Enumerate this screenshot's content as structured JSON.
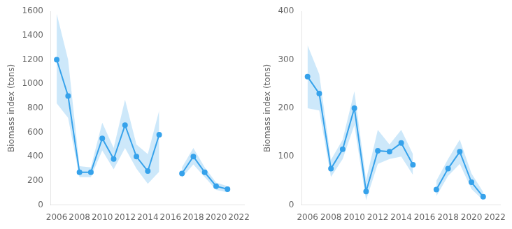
{
  "chart_data": [
    {
      "type": "line",
      "y_label": "Biomass index (tons)",
      "x": [
        2006,
        2007,
        2008,
        2009,
        2010,
        2011,
        2012,
        2013,
        2014,
        2015,
        2016,
        2017,
        2018,
        2019,
        2020,
        2021
      ],
      "series": [
        {
          "values": [
            1200,
            900,
            270,
            270,
            550,
            380,
            660,
            400,
            280,
            580,
            null,
            260,
            400,
            270,
            155,
            130
          ],
          "upper": [
            1580,
            1200,
            320,
            310,
            680,
            470,
            870,
            500,
            420,
            780,
            null,
            310,
            470,
            310,
            185,
            155
          ],
          "lower": [
            840,
            720,
            230,
            230,
            450,
            295,
            470,
            300,
            175,
            275,
            null,
            225,
            335,
            230,
            125,
            105
          ],
          "marker": "circle"
        }
      ],
      "xlim": [
        2005.5,
        2022.5
      ],
      "xticks": [
        2006,
        2008,
        2010,
        2012,
        2014,
        2016,
        2018,
        2020,
        2022
      ],
      "ylim": [
        0,
        1600
      ],
      "yticks": [
        0,
        200,
        400,
        600,
        800,
        1000,
        1200,
        1400,
        1600
      ],
      "grid": false
    },
    {
      "type": "line",
      "y_label": "Biomass index (tons)",
      "x": [
        2006,
        2007,
        2008,
        2009,
        2010,
        2011,
        2012,
        2013,
        2014,
        2015,
        2016,
        2017,
        2018,
        2019,
        2020,
        2021
      ],
      "series": [
        {
          "values": [
            265,
            230,
            75,
            115,
            200,
            28,
            112,
            110,
            128,
            83,
            null,
            32,
            75,
            110,
            47,
            17
          ],
          "upper": [
            330,
            270,
            93,
            135,
            235,
            52,
            155,
            125,
            155,
            105,
            null,
            50,
            95,
            135,
            65,
            27
          ],
          "lower": [
            200,
            195,
            58,
            95,
            165,
            10,
            85,
            95,
            100,
            62,
            null,
            18,
            60,
            85,
            33,
            10
          ],
          "marker": "circle"
        }
      ],
      "xlim": [
        2005.5,
        2022.5
      ],
      "xticks": [
        2006,
        2008,
        2010,
        2012,
        2014,
        2016,
        2018,
        2020,
        2022
      ],
      "ylim": [
        0,
        400
      ],
      "yticks": [
        0,
        100,
        200,
        300,
        400
      ],
      "grid": false
    }
  ]
}
